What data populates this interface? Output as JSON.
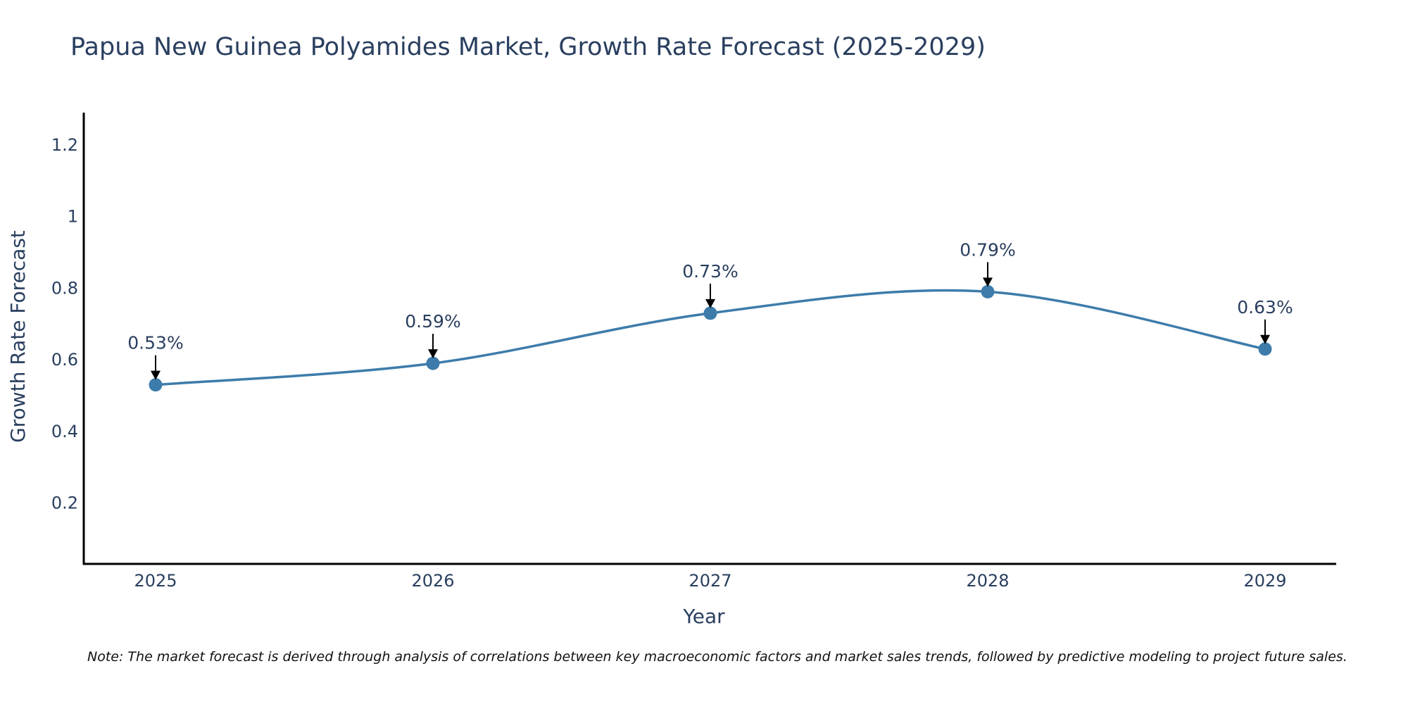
{
  "colors": {
    "series": "#3d7caa",
    "axis": "#000000",
    "text": "#2a3f5f",
    "arrow": "#000000"
  },
  "chart_data": {
    "type": "line",
    "title": "Papua New Guinea Polyamides Market, Growth Rate Forecast (2025-2029)",
    "xlabel": "Year",
    "ylabel": "Growth Rate Forecast",
    "categories": [
      "2025",
      "2026",
      "2027",
      "2028",
      "2029"
    ],
    "series": [
      {
        "name": "Growth Rate Forecast",
        "values": [
          0.53,
          0.59,
          0.73,
          0.79,
          0.63
        ]
      }
    ],
    "data_labels": [
      "0.53%",
      "0.59%",
      "0.73%",
      "0.79%",
      "0.63%"
    ],
    "ylim": [
      0.03,
      1.29
    ],
    "yticks": [
      0.2,
      0.4,
      0.6,
      0.8,
      1,
      1.2
    ],
    "ytick_labels": [
      "0.2",
      "0.4",
      "0.6",
      "0.8",
      "1",
      "1.2"
    ],
    "grid": false,
    "line_shape": "spline",
    "note": "Note: The market forecast is derived through analysis of correlations between key macroeconomic factors and market sales trends, followed by predictive modeling to project future sales."
  }
}
